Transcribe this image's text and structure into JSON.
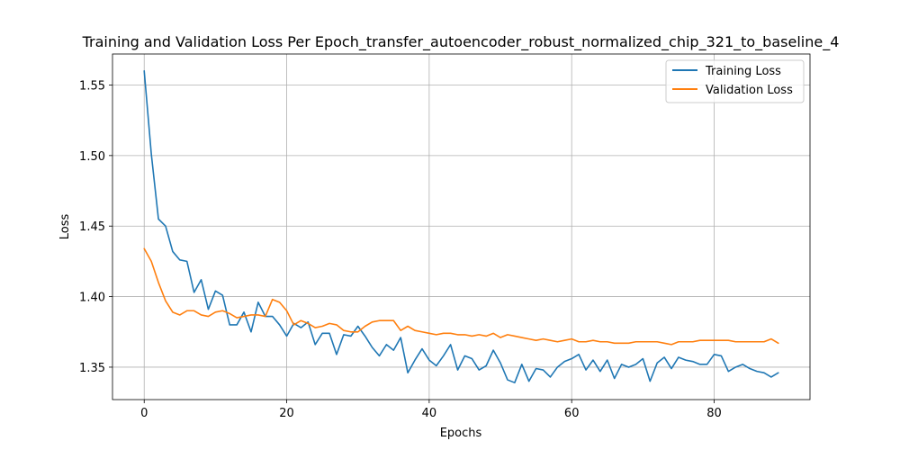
{
  "chart_data": {
    "type": "line",
    "title": "Training and Validation Loss Per Epoch_transfer_autoencoder_robust_normalized_chip_321_to_baseline_4",
    "xlabel": "Epochs",
    "ylabel": "Loss",
    "xlim": [
      -4.45,
      93.45
    ],
    "ylim": [
      1.327,
      1.572
    ],
    "xticks": [
      0,
      20,
      40,
      60,
      80
    ],
    "yticks": [
      1.35,
      1.4,
      1.45,
      1.5,
      1.55
    ],
    "grid": true,
    "legend_position": "top-right",
    "series": [
      {
        "name": "Training Loss",
        "color": "#1f77b4",
        "x": [
          0,
          1,
          2,
          3,
          4,
          5,
          6,
          7,
          8,
          9,
          10,
          11,
          12,
          13,
          14,
          15,
          16,
          17,
          18,
          19,
          20,
          21,
          22,
          23,
          24,
          25,
          26,
          27,
          28,
          29,
          30,
          31,
          32,
          33,
          34,
          35,
          36,
          37,
          38,
          39,
          40,
          41,
          42,
          43,
          44,
          45,
          46,
          47,
          48,
          49,
          50,
          51,
          52,
          53,
          54,
          55,
          56,
          57,
          58,
          59,
          60,
          61,
          62,
          63,
          64,
          65,
          66,
          67,
          68,
          69,
          70,
          71,
          72,
          73,
          74,
          75,
          76,
          77,
          78,
          79,
          80,
          81,
          82,
          83,
          84,
          85,
          86,
          87,
          88,
          89
        ],
        "values": [
          1.56,
          1.501,
          1.455,
          1.45,
          1.432,
          1.426,
          1.425,
          1.403,
          1.412,
          1.391,
          1.404,
          1.401,
          1.38,
          1.38,
          1.389,
          1.375,
          1.396,
          1.386,
          1.386,
          1.38,
          1.372,
          1.381,
          1.378,
          1.382,
          1.366,
          1.374,
          1.374,
          1.359,
          1.373,
          1.372,
          1.379,
          1.372,
          1.364,
          1.358,
          1.366,
          1.362,
          1.371,
          1.346,
          1.355,
          1.363,
          1.355,
          1.351,
          1.358,
          1.366,
          1.348,
          1.358,
          1.356,
          1.348,
          1.351,
          1.362,
          1.353,
          1.341,
          1.339,
          1.352,
          1.34,
          1.349,
          1.348,
          1.343,
          1.35,
          1.354,
          1.356,
          1.359,
          1.348,
          1.355,
          1.347,
          1.355,
          1.342,
          1.352,
          1.35,
          1.352,
          1.356,
          1.34,
          1.353,
          1.357,
          1.349,
          1.357,
          1.355,
          1.354,
          1.352,
          1.352,
          1.359,
          1.358,
          1.347,
          1.35,
          1.352,
          1.349,
          1.347,
          1.346,
          1.343,
          1.346
        ]
      },
      {
        "name": "Validation Loss",
        "color": "#ff7f0e",
        "x": [
          0,
          1,
          2,
          3,
          4,
          5,
          6,
          7,
          8,
          9,
          10,
          11,
          12,
          13,
          14,
          15,
          16,
          17,
          18,
          19,
          20,
          21,
          22,
          23,
          24,
          25,
          26,
          27,
          28,
          29,
          30,
          31,
          32,
          33,
          34,
          35,
          36,
          37,
          38,
          39,
          40,
          41,
          42,
          43,
          44,
          45,
          46,
          47,
          48,
          49,
          50,
          51,
          52,
          53,
          54,
          55,
          56,
          57,
          58,
          59,
          60,
          61,
          62,
          63,
          64,
          65,
          66,
          67,
          68,
          69,
          70,
          71,
          72,
          73,
          74,
          75,
          76,
          77,
          78,
          79,
          80,
          81,
          82,
          83,
          84,
          85,
          86,
          87,
          88,
          89
        ],
        "values": [
          1.434,
          1.425,
          1.41,
          1.397,
          1.389,
          1.387,
          1.39,
          1.39,
          1.387,
          1.386,
          1.389,
          1.39,
          1.388,
          1.385,
          1.386,
          1.387,
          1.387,
          1.386,
          1.398,
          1.396,
          1.39,
          1.38,
          1.383,
          1.381,
          1.378,
          1.379,
          1.381,
          1.38,
          1.376,
          1.375,
          1.375,
          1.379,
          1.382,
          1.383,
          1.383,
          1.383,
          1.376,
          1.379,
          1.376,
          1.375,
          1.374,
          1.373,
          1.374,
          1.374,
          1.373,
          1.373,
          1.372,
          1.373,
          1.372,
          1.374,
          1.371,
          1.373,
          1.372,
          1.371,
          1.37,
          1.369,
          1.37,
          1.369,
          1.368,
          1.369,
          1.37,
          1.368,
          1.368,
          1.369,
          1.368,
          1.368,
          1.367,
          1.367,
          1.367,
          1.368,
          1.368,
          1.368,
          1.368,
          1.367,
          1.366,
          1.368,
          1.368,
          1.368,
          1.369,
          1.369,
          1.369,
          1.369,
          1.369,
          1.368,
          1.368,
          1.368,
          1.368,
          1.368,
          1.37,
          1.367
        ]
      }
    ]
  }
}
